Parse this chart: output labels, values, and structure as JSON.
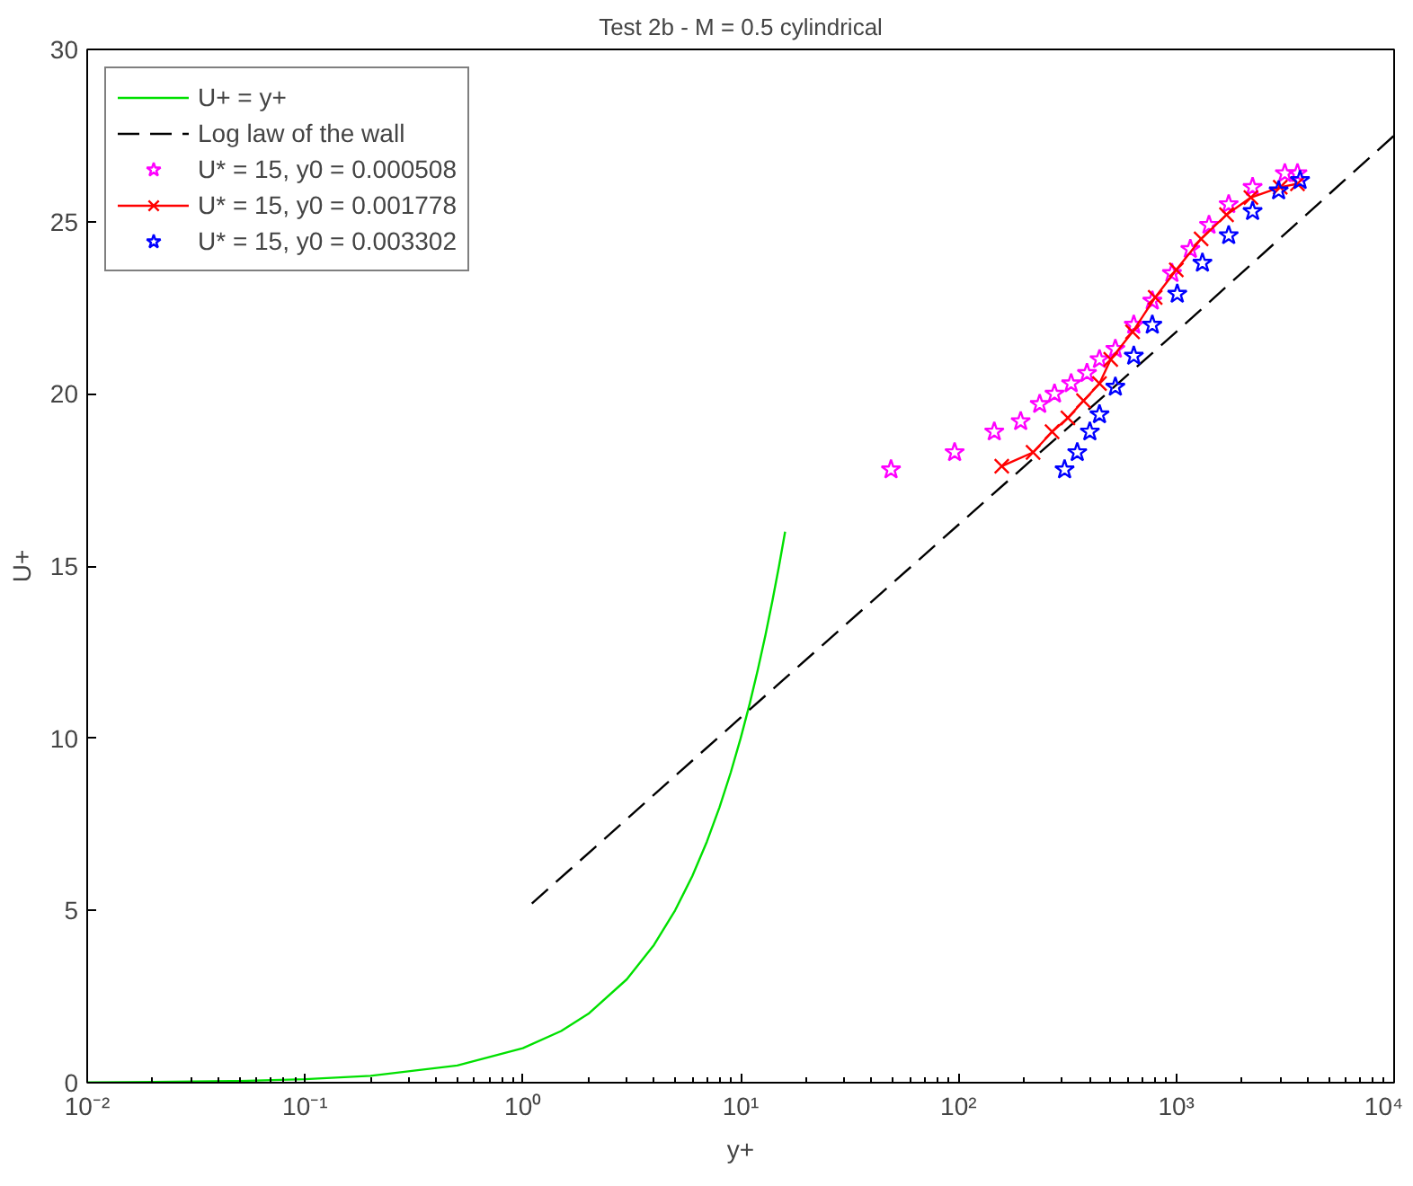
{
  "chart_data": {
    "type": "line",
    "title": "Test 2b - M = 0.5 cylindrical",
    "xlabel": "y+",
    "ylabel": "U+",
    "log": "x",
    "xlim": [
      0.01,
      10000
    ],
    "ylim": [
      0,
      30
    ],
    "xticks": [
      {
        "value": 0.01,
        "label": "10⁻²"
      },
      {
        "value": 0.1,
        "label": "10⁻¹"
      },
      {
        "value": 1,
        "label": "10⁰"
      },
      {
        "value": 10,
        "label": "10¹"
      },
      {
        "value": 100,
        "label": "10²"
      },
      {
        "value": 1000,
        "label": "10³"
      },
      {
        "value": 10000,
        "label": "10⁴"
      }
    ],
    "yticks": [
      0,
      5,
      10,
      15,
      20,
      25,
      30
    ],
    "grid": false,
    "legend": "top left",
    "series": [
      {
        "name": "U+ = y+",
        "color": "#00e000",
        "line_style": "solid",
        "marker": "none",
        "x": [
          0.01,
          0.02,
          0.05,
          0.1,
          0.2,
          0.5,
          1,
          1.5,
          2,
          3,
          4,
          5,
          6,
          7,
          8,
          9,
          10,
          11,
          12,
          13,
          14,
          15,
          16
        ],
        "values": [
          0.01,
          0.02,
          0.05,
          0.1,
          0.2,
          0.5,
          1,
          1.5,
          2,
          3,
          4,
          5,
          6,
          7,
          8,
          9,
          10,
          11,
          12,
          13,
          14,
          15,
          16
        ]
      },
      {
        "name": "Log law of the wall",
        "color": "#000000",
        "line_style": "dashed",
        "marker": "none",
        "x": [
          1.1,
          10,
          100,
          1000,
          10000
        ],
        "values": [
          5.2,
          10.6,
          16.2,
          21.8,
          27.5
        ]
      },
      {
        "name": "U* = 15, y0 = 0.000508",
        "type": "scatter",
        "color": "#ff00ff",
        "marker": "star",
        "x": [
          49,
          96,
          146,
          193,
          236,
          276,
          329,
          389,
          444,
          525,
          638,
          776,
          955,
          1160,
          1413,
          1740,
          2240,
          3150,
          3600
        ],
        "values": [
          17.8,
          18.3,
          18.9,
          19.2,
          19.7,
          20.0,
          20.3,
          20.6,
          21.0,
          21.3,
          22.0,
          22.7,
          23.5,
          24.2,
          24.9,
          25.5,
          26.0,
          26.4,
          26.4
        ]
      },
      {
        "name": "U* = 15, y0 = 0.001778",
        "color": "#ff0000",
        "line_style": "solid",
        "marker": "cross",
        "x": [
          158,
          220,
          269,
          318,
          375,
          444,
          500,
          630,
          800,
          1000,
          1300,
          1700,
          2200,
          3000,
          3600
        ],
        "values": [
          17.9,
          18.3,
          18.9,
          19.3,
          19.8,
          20.3,
          21.0,
          21.8,
          22.8,
          23.6,
          24.5,
          25.2,
          25.7,
          26.0,
          26.1
        ]
      },
      {
        "name": "U* = 15, y0 = 0.003302",
        "type": "scatter",
        "color": "#0000ff",
        "marker": "star",
        "x": [
          307,
          351,
          401,
          444,
          525,
          638,
          776,
          1010,
          1318,
          1740,
          2240,
          2950,
          3700
        ],
        "values": [
          17.8,
          18.3,
          18.9,
          19.4,
          20.2,
          21.1,
          22.0,
          22.9,
          23.8,
          24.6,
          25.3,
          25.9,
          26.2
        ]
      }
    ]
  }
}
